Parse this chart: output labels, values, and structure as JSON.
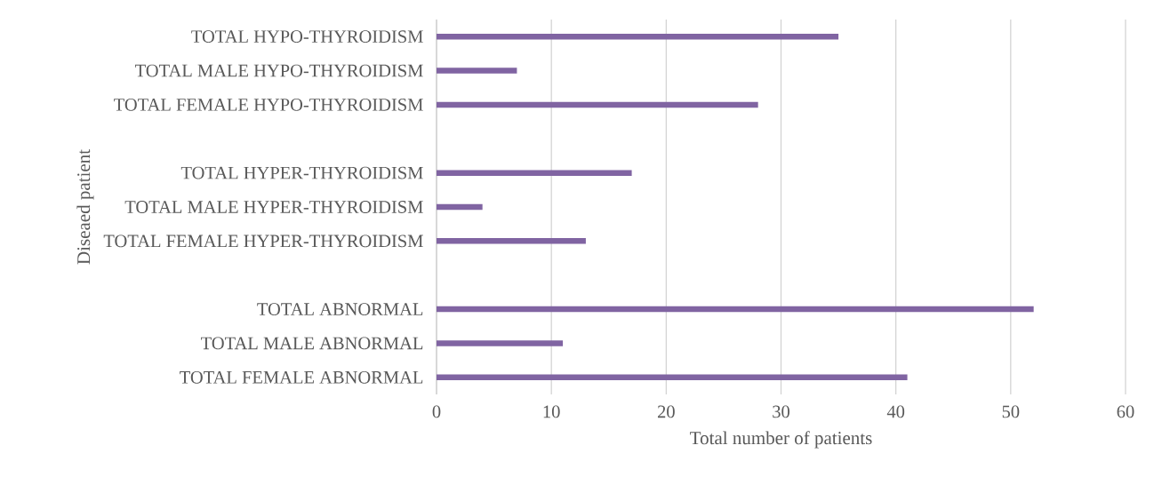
{
  "chart_data": {
    "type": "bar",
    "orientation": "horizontal",
    "categories": [
      "TOTAL HYPO-THYROIDISM",
      "TOTAL MALE HYPO-THYROIDISM",
      "TOTAL FEMALE HYPO-THYROIDISM",
      null,
      "TOTAL HYPER-THYROIDISM",
      "TOTAL MALE HYPER-THYROIDISM",
      "TOTAL FEMALE HYPER-THYROIDISM",
      null,
      "TOTAL ABNORMAL",
      "TOTAL MALE ABNORMAL",
      "TOTAL FEMALE ABNORMAL"
    ],
    "values": [
      35,
      7,
      28,
      null,
      17,
      4,
      13,
      null,
      52,
      11,
      41
    ],
    "color": "#8064a2",
    "xlabel": "Total number of patients",
    "ylabel": "Diseaed patient",
    "xlim": [
      0,
      60
    ],
    "xticks": [
      0,
      10,
      20,
      30,
      40,
      50,
      60
    ],
    "grid": "x"
  }
}
